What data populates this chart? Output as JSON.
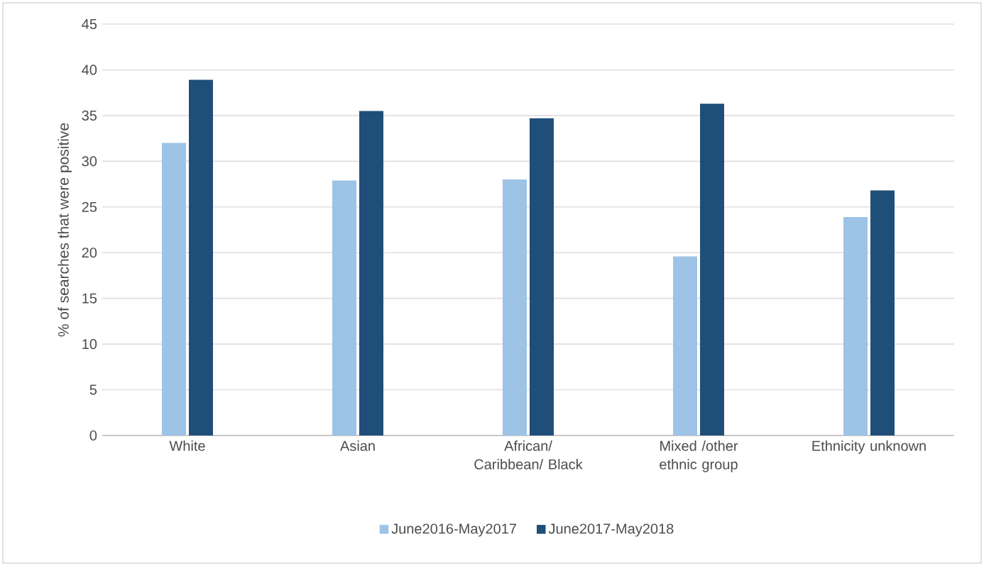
{
  "chart_data": {
    "type": "bar",
    "ylabel": "% of searches that were positive",
    "categories": [
      "White",
      "Asian",
      "African/ Caribbean/ Black",
      "Mixed /other ethnic group",
      "Ethnicity unknown"
    ],
    "series": [
      {
        "name": "June2016-May2017",
        "color": "#9dc3e6",
        "values": [
          32.0,
          27.9,
          28.0,
          19.6,
          23.9
        ]
      },
      {
        "name": "June2017-May2018",
        "color": "#1f4e79",
        "values": [
          38.9,
          35.5,
          34.7,
          36.3,
          26.8
        ]
      }
    ],
    "ylim": [
      0,
      45
    ],
    "yticks": [
      0,
      5,
      10,
      15,
      20,
      25,
      30,
      35,
      40,
      45
    ],
    "grid": "y",
    "legend": "bottom"
  }
}
